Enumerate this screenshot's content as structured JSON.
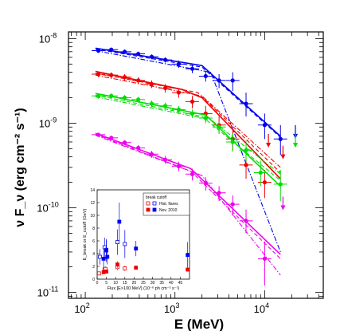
{
  "chart_data": [
    {
      "type": "scatter",
      "title": "",
      "xlabel": "E (MeV)",
      "ylabel": "ν F_ν (erg cm⁻² s⁻¹)",
      "xscale": "log",
      "yscale": "log",
      "xlim": [
        65,
        45000
      ],
      "ylim": [
        8.5e-12,
        1.2e-08
      ],
      "x_ticks": [
        {
          "value": 100,
          "base": "10",
          "exp": "2"
        },
        {
          "value": 1000,
          "base": "10",
          "exp": "3"
        },
        {
          "value": 10000,
          "base": "10",
          "exp": "4"
        }
      ],
      "y_ticks": [
        {
          "value": 1e-11,
          "base": "10",
          "exp": "-11"
        },
        {
          "value": 1e-10,
          "base": "10",
          "exp": "-10"
        },
        {
          "value": 1e-09,
          "base": "10",
          "exp": "-9"
        },
        {
          "value": 1e-08,
          "base": "10",
          "exp": "-8"
        }
      ],
      "series": [
        {
          "color": "#0000ee",
          "x": [
            140,
            195,
            275,
            390,
            550,
            780,
            1100,
            1560,
            2200,
            3100,
            4400,
            6200,
            10000,
            15000
          ],
          "y": [
            7.2e-09,
            7.4e-09,
            7e-09,
            6.6e-09,
            6.1e-09,
            5.6e-09,
            5e-09,
            4.4e-09,
            3.6e-09,
            3.2e-09,
            3.2e-09,
            1.7e-09,
            9.5e-10,
            6.5e-10
          ],
          "y_up": [
            7.6e-09,
            7.8e-09,
            7.4e-09,
            7e-09,
            6.5e-09,
            6e-09,
            5.5e-09,
            4.9e-09,
            4.1e-09,
            3.8e-09,
            4e-09,
            2.3e-09,
            1.3e-09,
            9.5e-10
          ],
          "y_low": [
            6.8e-09,
            7e-09,
            6.6e-09,
            6.2e-09,
            5.7e-09,
            5.2e-09,
            4.5e-09,
            3.9e-09,
            3.1e-09,
            2.6e-09,
            2.4e-09,
            1.2e-09,
            6.5e-10,
            4.2e-10
          ],
          "upper_limits": [
            {
              "x": 22000,
              "y": 7e-10
            }
          ],
          "model_lines": [
            {
              "style": "solid",
              "x": [
                130,
                2000,
                15000
              ],
              "y": [
                7.7e-09,
                4.8e-09,
                7e-10
              ]
            },
            {
              "style": "dashed",
              "x": [
                130,
                2000,
                15000
              ],
              "y": [
                7.5e-09,
                4.6e-09,
                6.8e-10
              ]
            },
            {
              "style": "dashdot",
              "x": [
                130,
                2500,
                15000
              ],
              "y": [
                7.2e-09,
                4e-09,
                3e-11
              ]
            }
          ]
        },
        {
          "color": "#ee0000",
          "x": [
            140,
            195,
            275,
            390,
            550,
            780,
            1100,
            1560,
            2200,
            3100,
            4400,
            6200,
            10000
          ],
          "y": [
            3.8e-09,
            3.7e-09,
            3.5e-09,
            3.2e-09,
            2.9e-09,
            2.6e-09,
            2.3e-09,
            1.8e-09,
            1.3e-09,
            9.5e-10,
            6.5e-10,
            3.2e-10,
            2e-10
          ],
          "y_up": [
            4.1e-09,
            4e-09,
            3.8e-09,
            3.5e-09,
            3.2e-09,
            2.9e-09,
            2.6e-09,
            2.1e-09,
            1.6e-09,
            1.2e-09,
            8.5e-10,
            4.6e-10,
            2.8e-10
          ],
          "y_low": [
            3.5e-09,
            3.4e-09,
            3.2e-09,
            2.9e-09,
            2.6e-09,
            2.3e-09,
            2e-09,
            1.5e-09,
            1.05e-09,
            7.5e-10,
            4.8e-10,
            2.2e-10,
            1.3e-10
          ],
          "upper_limits": [
            {
              "x": 11000,
              "y": 5.5e-10
            },
            {
              "x": 16000,
              "y": 4e-10
            }
          ],
          "model_lines": [
            {
              "style": "solid",
              "x": [
                130,
                1200,
                2000,
                15000
              ],
              "y": [
                4.1e-09,
                2.5e-09,
                2e-09,
                2.2e-10
              ]
            },
            {
              "style": "dashed",
              "x": [
                130,
                1800,
                15000
              ],
              "y": [
                3.9e-09,
                2.3e-09,
                2.6e-10
              ]
            },
            {
              "style": "dashdot",
              "x": [
                130,
                2000,
                15000
              ],
              "y": [
                3.7e-09,
                2.1e-09,
                3e-10
              ]
            }
          ]
        },
        {
          "color": "#00dd00",
          "x": [
            140,
            195,
            275,
            390,
            550,
            780,
            1100,
            1560,
            2200,
            3100,
            4400,
            6200,
            9000,
            15000
          ],
          "y": [
            2.1e-09,
            2.1e-09,
            2e-09,
            1.9e-09,
            1.7e-09,
            1.6e-09,
            1.45e-09,
            1.3e-09,
            1.15e-09,
            9e-10,
            6e-10,
            4.8e-10,
            2.6e-10,
            1.9e-10
          ],
          "y_up": [
            2.25e-09,
            2.25e-09,
            2.15e-09,
            2.05e-09,
            1.85e-09,
            1.75e-09,
            1.6e-09,
            1.45e-09,
            1.3e-09,
            1.05e-09,
            7.5e-10,
            6.2e-10,
            3.6e-10,
            2.8e-10
          ],
          "y_low": [
            1.95e-09,
            1.95e-09,
            1.85e-09,
            1.75e-09,
            1.55e-09,
            1.45e-09,
            1.3e-09,
            1.15e-09,
            1e-09,
            7.5e-10,
            4.6e-10,
            3.5e-10,
            1.8e-10,
            1.2e-10
          ],
          "upper_limits": [
            {
              "x": 22000,
              "y": 5.5e-10
            }
          ],
          "model_lines": [
            {
              "style": "solid",
              "x": [
                130,
                2200,
                15000
              ],
              "y": [
                2.25e-09,
                1.25e-09,
                1.8e-10
              ]
            },
            {
              "style": "dashed",
              "x": [
                130,
                2000,
                15000
              ],
              "y": [
                2.15e-09,
                1.2e-09,
                2.1e-10
              ]
            },
            {
              "style": "dashdot",
              "x": [
                130,
                2500,
                15000
              ],
              "y": [
                2.05e-09,
                1.1e-09,
                2.5e-10
              ]
            }
          ]
        },
        {
          "color": "#ee00ee",
          "x": [
            140,
            195,
            275,
            390,
            550,
            780,
            1100,
            1560,
            2200,
            3100,
            4400,
            6200,
            10000
          ],
          "y": [
            7.3e-10,
            6.7e-10,
            5.9e-10,
            5.1e-10,
            4.3e-10,
            3.7e-10,
            3.1e-10,
            2.5e-10,
            1.95e-10,
            1.5e-10,
            1.1e-10,
            7e-11,
            2.5e-11
          ],
          "y_up": [
            7.7e-10,
            7.1e-10,
            6.3e-10,
            5.5e-10,
            4.7e-10,
            4.1e-10,
            3.5e-10,
            2.9e-10,
            2.3e-10,
            1.8e-10,
            1.4e-10,
            9.5e-11,
            4e-11
          ],
          "y_low": [
            6.9e-10,
            6.3e-10,
            5.5e-10,
            4.7e-10,
            3.9e-10,
            3.3e-10,
            2.7e-10,
            2.1e-10,
            1.6e-10,
            1.2e-10,
            8e-11,
            5e-11,
            1.2e-11
          ],
          "upper_limits": [
            {
              "x": 16000,
              "y": 1e-10
            }
          ],
          "model_lines": [
            {
              "style": "solid",
              "x": [
                130,
                1500,
                15000
              ],
              "y": [
                7.6e-10,
                2.9e-10,
                2.8e-11
              ]
            },
            {
              "style": "dashed",
              "x": [
                130,
                1500,
                15000
              ],
              "y": [
                7.4e-10,
                2.7e-10,
                2.5e-11
              ]
            },
            {
              "style": "dashdot",
              "x": [
                130,
                2000,
                15000
              ],
              "y": [
                7.2e-10,
                2.4e-10,
                1.6e-11
              ]
            }
          ]
        }
      ]
    },
    {
      "type": "scatter",
      "xlabel": "Flux [E>100 MeV] (10⁻⁶ ph cm⁻² s⁻¹)",
      "ylabel": "E_break or E_cutoff (GeV)",
      "xlim": [
        0,
        50
      ],
      "ylim": [
        0,
        14
      ],
      "x_ticks": [
        "0",
        "5",
        "10",
        "15",
        "20",
        "25",
        "30",
        "35",
        "40",
        "45"
      ],
      "y_ticks": [
        "0",
        "2",
        "4",
        "6",
        "8",
        "10",
        "12",
        "14"
      ],
      "legend_title": "break  cutoff",
      "series": [
        {
          "name": "Hist. flares",
          "marker": "open-square",
          "break": {
            "color": "#0000ee",
            "x": [
              1.5,
              4,
              5,
              11,
              15
            ],
            "y": [
              3.5,
              5.0,
              4.6,
              5.8,
              5.5
            ],
            "err": [
              1.2,
              1.5,
              1.5,
              2.0,
              2.2
            ]
          },
          "cutoff": {
            "color": "#ee0000",
            "x": [
              1.0,
              4.0,
              4.5,
              11.0,
              15.0
            ],
            "y": [
              0.9,
              1.5,
              1.6,
              1.9,
              1.7
            ],
            "err": [
              0.3,
              0.4,
              0.4,
              0.5,
              0.4
            ]
          }
        },
        {
          "name": "Nov. 2010",
          "marker": "filled-square",
          "break": {
            "color": "#0000ee",
            "x": [
              3.5,
              5.0,
              5.5,
              12.0,
              21.0,
              49.0
            ],
            "y": [
              3.2,
              4.5,
              3.5,
              9.0,
              4.8,
              3.8
            ],
            "err": [
              1.5,
              1.8,
              1.2,
              3.0,
              1.2,
              2.0
            ]
          },
          "cutoff": {
            "color": "#ee0000",
            "x": [
              3.5,
              5.0,
              11.0,
              21.0,
              49.0
            ],
            "y": [
              1.1,
              1.2,
              2.3,
              1.8,
              1.5
            ],
            "err": [
              0.3,
              0.3,
              0.5,
              0.3,
              0.3
            ]
          }
        }
      ]
    }
  ]
}
